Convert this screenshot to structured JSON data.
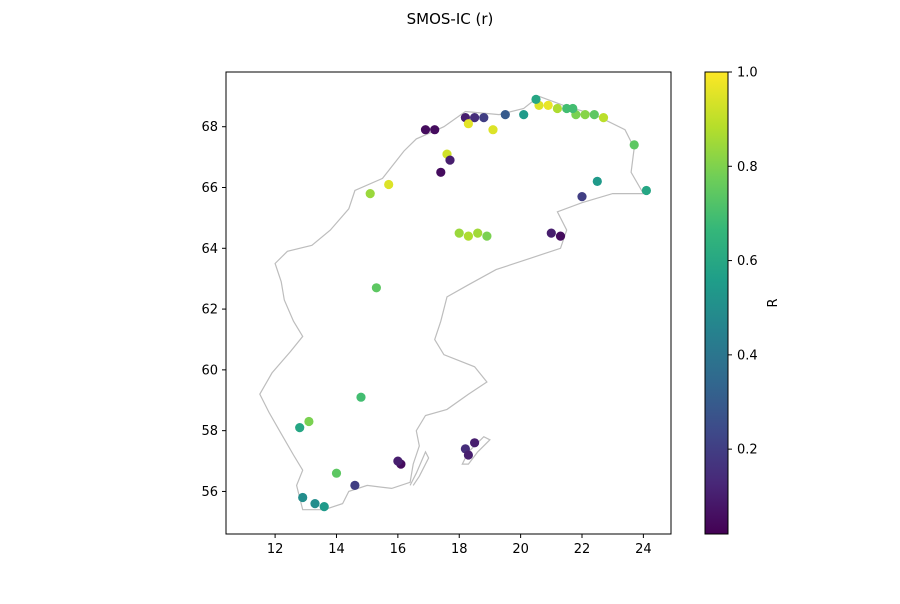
{
  "chart_data": {
    "type": "scatter",
    "title": "SMOS-IC (r)",
    "xlabel": "",
    "ylabel": "",
    "xlim": [
      10.4,
      24.9
    ],
    "ylim": [
      54.6,
      69.8
    ],
    "xticks": [
      12,
      14,
      16,
      18,
      20,
      22,
      24
    ],
    "yticks": [
      56,
      58,
      60,
      62,
      64,
      66,
      68
    ],
    "grid": false,
    "colormap": "viridis",
    "colorbar": {
      "label": "R",
      "min": 0.02,
      "max": 1.0,
      "ticks": [
        0.2,
        0.4,
        0.6,
        0.8,
        1.0
      ],
      "tick_labels": [
        "0.2",
        "0.4",
        "0.6",
        "0.8",
        "1.0"
      ]
    },
    "coastline_color": "#bdbdbd",
    "marker_color_scale": [
      "#440154",
      "#482878",
      "#3e4989",
      "#31688e",
      "#26828e",
      "#1f9e89",
      "#35b779",
      "#6ece58",
      "#b5de2b",
      "#fde725"
    ],
    "points": [
      [
        20.6,
        68.7,
        0.95
      ],
      [
        20.9,
        68.7,
        0.97
      ],
      [
        21.2,
        68.6,
        0.88
      ],
      [
        21.5,
        68.6,
        0.7
      ],
      [
        21.8,
        68.4,
        0.8
      ],
      [
        22.1,
        68.4,
        0.82
      ],
      [
        22.4,
        68.4,
        0.75
      ],
      [
        22.7,
        68.3,
        0.9
      ],
      [
        18.2,
        68.3,
        0.1
      ],
      [
        18.5,
        68.3,
        0.15
      ],
      [
        18.8,
        68.3,
        0.2
      ],
      [
        18.3,
        68.1,
        0.96
      ],
      [
        19.1,
        67.9,
        0.95
      ],
      [
        17.6,
        67.1,
        0.93
      ],
      [
        15.7,
        66.1,
        0.95
      ],
      [
        15.1,
        65.8,
        0.85
      ],
      [
        18.0,
        64.5,
        0.85
      ],
      [
        18.3,
        64.4,
        0.88
      ],
      [
        18.6,
        64.5,
        0.86
      ],
      [
        18.9,
        64.4,
        0.8
      ],
      [
        16.9,
        67.9,
        0.05
      ],
      [
        17.2,
        67.9,
        0.05
      ],
      [
        17.7,
        66.9,
        0.1
      ],
      [
        17.4,
        66.5,
        0.05
      ],
      [
        15.3,
        62.7,
        0.75
      ],
      [
        14.8,
        59.1,
        0.7
      ],
      [
        13.1,
        58.3,
        0.8
      ],
      [
        12.8,
        58.1,
        0.6
      ],
      [
        16.1,
        56.9,
        0.05
      ],
      [
        16.0,
        57.0,
        0.1
      ],
      [
        18.5,
        57.6,
        0.1
      ],
      [
        18.2,
        57.4,
        0.15
      ],
      [
        18.3,
        57.2,
        0.1
      ],
      [
        13.3,
        55.6,
        0.5
      ],
      [
        13.6,
        55.5,
        0.55
      ],
      [
        12.9,
        55.8,
        0.5
      ],
      [
        14.0,
        56.6,
        0.75
      ],
      [
        14.6,
        56.2,
        0.2
      ],
      [
        23.7,
        67.4,
        0.75
      ],
      [
        24.1,
        65.9,
        0.6
      ],
      [
        21.3,
        64.4,
        0.05
      ],
      [
        21.0,
        64.5,
        0.1
      ],
      [
        22.0,
        65.7,
        0.2
      ],
      [
        22.5,
        66.2,
        0.55
      ],
      [
        19.5,
        68.4,
        0.3
      ],
      [
        20.1,
        68.4,
        0.55
      ],
      [
        20.5,
        68.9,
        0.6
      ],
      [
        21.7,
        68.6,
        0.7
      ]
    ]
  }
}
